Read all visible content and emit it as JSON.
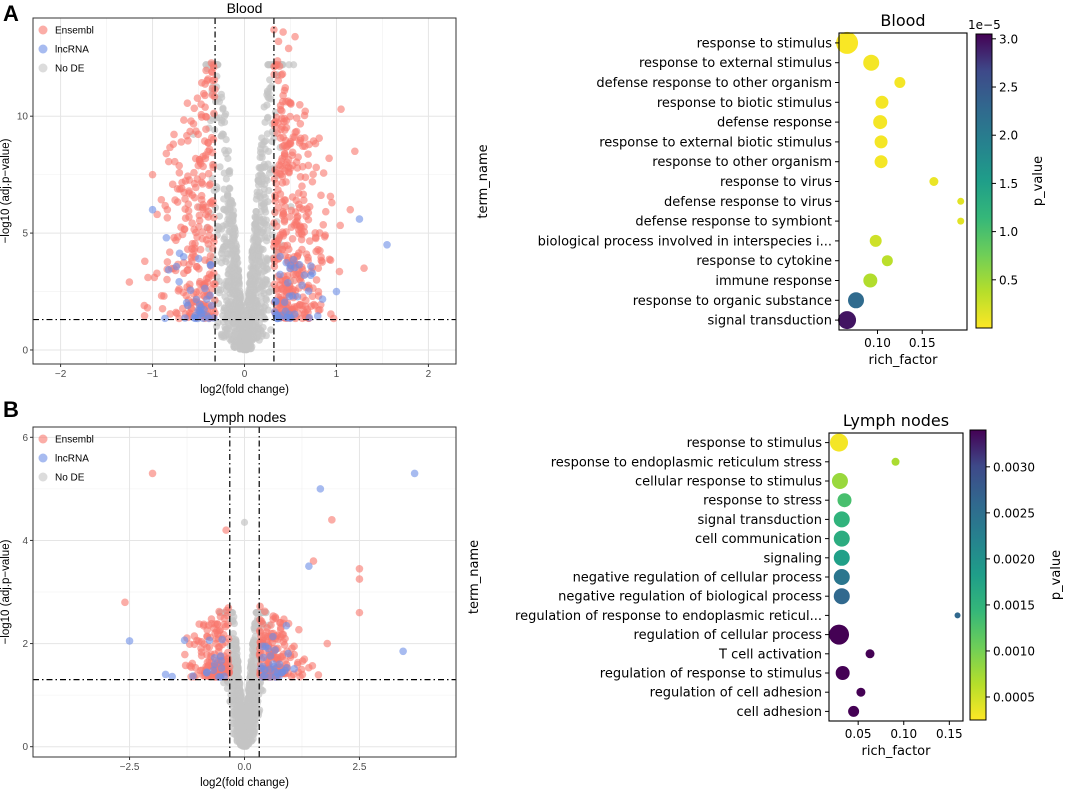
{
  "figure": {
    "panel_a_letter": "A",
    "panel_b_letter": "B"
  },
  "chart_data": [
    {
      "id": "volcano_blood",
      "type": "scatter",
      "title": "Blood",
      "xlabel": "log2(fold change)",
      "ylabel": "−log10 (adj.p−value)",
      "xlim": [
        -2.3,
        2.3
      ],
      "ylim": [
        -0.6,
        14.2
      ],
      "xticks": [
        -2,
        -1,
        0,
        1,
        2
      ],
      "xtick_labels": [
        "−2",
        "−1",
        "0",
        "1",
        "2"
      ],
      "yticks": [
        0,
        5,
        10
      ],
      "ytick_labels": [
        "0",
        "5",
        "10"
      ],
      "vlines": [
        -0.32,
        0.32
      ],
      "hline": 1.3,
      "grid": true,
      "legend": {
        "position": "top-left",
        "entries": [
          {
            "label": "Ensembl",
            "color": "#F8766D"
          },
          {
            "label": "lncRNA",
            "color": "#6C8EE6"
          },
          {
            "label": "No DE",
            "color": "#C4C4C4"
          }
        ]
      },
      "seed": 11,
      "nonde_count": 1100,
      "ensembl_count": 620,
      "lncrna_count": 70,
      "ensembl_extra_points": [
        [
          0.32,
          13.7
        ],
        [
          0.42,
          13.6
        ],
        [
          0.55,
          13.4
        ],
        [
          0.37,
          13.2
        ],
        [
          0.48,
          12.9
        ],
        [
          1.05,
          10.3
        ],
        [
          1.2,
          8.5
        ],
        [
          -0.85,
          8.4
        ],
        [
          0.92,
          8.2
        ],
        [
          -1.0,
          7.5
        ],
        [
          1.3,
          3.5
        ],
        [
          -1.05,
          3.1
        ],
        [
          1.15,
          6.0
        ],
        [
          -0.95,
          5.8
        ],
        [
          0.95,
          6.3
        ]
      ],
      "lncrna_extra_points": [
        [
          1.55,
          4.5
        ],
        [
          1.25,
          5.6
        ],
        [
          -1.0,
          6.0
        ],
        [
          1.0,
          2.5
        ],
        [
          -0.85,
          4.8
        ],
        [
          0.65,
          3.2
        ]
      ]
    },
    {
      "id": "enrich_blood",
      "type": "scatter",
      "title": "Blood",
      "xlabel": "rich_factor",
      "ylabel": "term_name",
      "xlim": [
        0.057,
        0.2
      ],
      "xticks": [
        0.1,
        0.15
      ],
      "xtick_labels": [
        "0.10",
        "0.15"
      ],
      "colorbar": {
        "label": "p_value",
        "multiplier": "1e−5",
        "min": 0.0,
        "max": 3.05,
        "ticks": [
          0.5,
          1.0,
          1.5,
          2.0,
          2.5,
          3.0
        ],
        "tick_labels": [
          "0.5",
          "1.0",
          "1.5",
          "2.0",
          "2.5",
          "3.0"
        ],
        "colormap": "viridis_r"
      },
      "terms": [
        {
          "name": "response to stimulus",
          "rich_factor": 0.066,
          "p_value": 0.02,
          "size": 11
        },
        {
          "name": "response to external stimulus",
          "rich_factor": 0.093,
          "p_value": 0.05,
          "size": 8
        },
        {
          "name": "defense response to other organism",
          "rich_factor": 0.125,
          "p_value": 0.05,
          "size": 5.5
        },
        {
          "name": "response to biotic stimulus",
          "rich_factor": 0.105,
          "p_value": 0.05,
          "size": 6.5
        },
        {
          "name": "defense response",
          "rich_factor": 0.103,
          "p_value": 0.05,
          "size": 7
        },
        {
          "name": "response to external biotic stimulus",
          "rich_factor": 0.104,
          "p_value": 0.05,
          "size": 6.5
        },
        {
          "name": "response to other organism",
          "rich_factor": 0.104,
          "p_value": 0.05,
          "size": 6.5
        },
        {
          "name": "response to virus",
          "rich_factor": 0.163,
          "p_value": 0.1,
          "size": 4.5
        },
        {
          "name": "defense response to virus",
          "rich_factor": 0.193,
          "p_value": 0.15,
          "size": 3.5
        },
        {
          "name": "defense response to symbiont",
          "rich_factor": 0.193,
          "p_value": 0.15,
          "size": 3.5
        },
        {
          "name": "biological process involved in interspecies i...",
          "rich_factor": 0.098,
          "p_value": 0.25,
          "size": 6
        },
        {
          "name": "response to cytokine",
          "rich_factor": 0.111,
          "p_value": 0.35,
          "size": 5.5
        },
        {
          "name": "immune response",
          "rich_factor": 0.092,
          "p_value": 0.4,
          "size": 7
        },
        {
          "name": "response to organic substance",
          "rich_factor": 0.076,
          "p_value": 2.25,
          "size": 8
        },
        {
          "name": "signal transduction",
          "rich_factor": 0.066,
          "p_value": 2.95,
          "size": 9
        }
      ]
    },
    {
      "id": "volcano_lymph",
      "type": "scatter",
      "title": "Lymph nodes",
      "xlabel": "log2(fold change)",
      "ylabel": "−log10 (adj.p−value)",
      "xlim": [
        -4.6,
        4.6
      ],
      "ylim": [
        -0.2,
        6.2
      ],
      "xticks": [
        -2.5,
        0,
        2.5
      ],
      "xtick_labels": [
        "−2.5",
        "0.0",
        "2.5"
      ],
      "yticks": [
        0,
        2,
        4,
        6
      ],
      "ytick_labels": [
        "0",
        "2",
        "4",
        "6"
      ],
      "vlines": [
        -0.32,
        0.32
      ],
      "hline": 1.3,
      "grid": true,
      "legend": {
        "position": "top-left",
        "entries": [
          {
            "label": "Ensembl",
            "color": "#F8766D"
          },
          {
            "label": "lncRNA",
            "color": "#6C8EE6"
          },
          {
            "label": "No DE",
            "color": "#C4C4C4"
          }
        ]
      },
      "seed": 29,
      "nonde_count": 900,
      "ensembl_count": 300,
      "lncrna_count": 45,
      "ensembl_extra_points": [
        [
          -2.0,
          5.3
        ],
        [
          1.9,
          4.4
        ],
        [
          -0.4,
          4.2
        ],
        [
          1.5,
          3.6
        ],
        [
          2.5,
          3.45
        ],
        [
          2.5,
          3.25
        ],
        [
          -2.6,
          2.8
        ],
        [
          2.5,
          2.6
        ],
        [
          1.8,
          2.0
        ]
      ],
      "lncrna_extra_points": [
        [
          3.7,
          5.3
        ],
        [
          1.65,
          5.0
        ],
        [
          1.4,
          3.5
        ],
        [
          -2.5,
          2.05
        ],
        [
          3.45,
          1.85
        ]
      ],
      "nonde_extra_points": [
        [
          0.0,
          4.35
        ]
      ]
    },
    {
      "id": "enrich_lymph",
      "type": "scatter",
      "title": "Lymph nodes",
      "xlabel": "rich_factor",
      "ylabel": "term_name",
      "xlim": [
        0.018,
        0.165
      ],
      "xticks": [
        0.05,
        0.1,
        0.15
      ],
      "xtick_labels": [
        "0.05",
        "0.10",
        "0.15"
      ],
      "colorbar": {
        "label": "p_value",
        "multiplier": "",
        "min": 0.00025,
        "max": 0.0034,
        "ticks": [
          0.0005,
          0.001,
          0.0015,
          0.002,
          0.0025,
          0.003
        ],
        "tick_labels": [
          "0.0005",
          "0.0010",
          "0.0015",
          "0.0020",
          "0.0025",
          "0.0030"
        ],
        "colormap": "viridis_r"
      },
      "terms": [
        {
          "name": "response to stimulus",
          "rich_factor": 0.029,
          "p_value": 0.0003,
          "size": 9
        },
        {
          "name": "response to endoplasmic reticulum stress",
          "rich_factor": 0.091,
          "p_value": 0.0007,
          "size": 4
        },
        {
          "name": "cellular response to stimulus",
          "rich_factor": 0.03,
          "p_value": 0.0008,
          "size": 8
        },
        {
          "name": "response to stress",
          "rich_factor": 0.035,
          "p_value": 0.0013,
          "size": 7
        },
        {
          "name": "signal transduction",
          "rich_factor": 0.032,
          "p_value": 0.0015,
          "size": 8
        },
        {
          "name": "cell communication",
          "rich_factor": 0.032,
          "p_value": 0.0016,
          "size": 8
        },
        {
          "name": "signaling",
          "rich_factor": 0.032,
          "p_value": 0.0018,
          "size": 8
        },
        {
          "name": "negative regulation of cellular process",
          "rich_factor": 0.032,
          "p_value": 0.0024,
          "size": 8
        },
        {
          "name": "negative regulation of biological process",
          "rich_factor": 0.032,
          "p_value": 0.0026,
          "size": 8
        },
        {
          "name": "regulation of response to endoplasmic reticul...",
          "rich_factor": 0.159,
          "p_value": 0.0026,
          "size": 3
        },
        {
          "name": "regulation of cellular process",
          "rich_factor": 0.029,
          "p_value": 0.0034,
          "size": 10
        },
        {
          "name": "T cell activation",
          "rich_factor": 0.063,
          "p_value": 0.0034,
          "size": 4.5
        },
        {
          "name": "regulation of response to stimulus",
          "rich_factor": 0.033,
          "p_value": 0.0034,
          "size": 7
        },
        {
          "name": "regulation of cell adhesion",
          "rich_factor": 0.053,
          "p_value": 0.0034,
          "size": 4.5
        },
        {
          "name": "cell adhesion",
          "rich_factor": 0.045,
          "p_value": 0.0034,
          "size": 5.5
        }
      ]
    }
  ]
}
